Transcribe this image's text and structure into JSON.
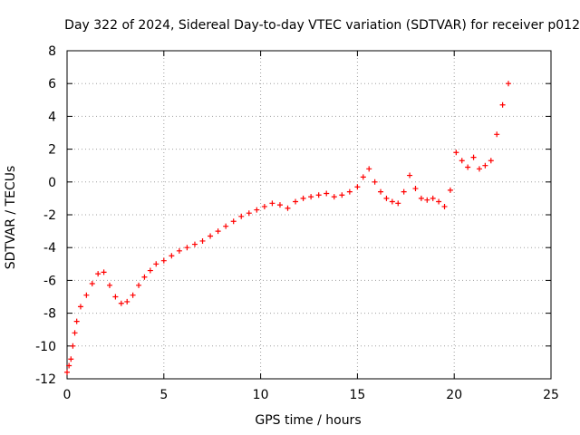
{
  "chart_data": {
    "type": "scatter",
    "title": "Day 322 of 2024, Sidereal Day-to-day VTEC variation (SDTVAR) for receiver p012",
    "xlabel": "GPS time / hours",
    "ylabel": "SDTVAR / TECUs",
    "xlim": [
      0,
      25
    ],
    "ylim": [
      -12,
      8
    ],
    "xticks": [
      "0",
      "5",
      "10",
      "15",
      "20",
      "25"
    ],
    "yticks": [
      "-12",
      "-10",
      "-8",
      "-6",
      "-4",
      "-2",
      "0",
      "2",
      "4",
      "6",
      "8"
    ],
    "grid": true,
    "marker": "+",
    "color": "#ff0000",
    "series": [
      {
        "name": "SDTVAR",
        "x": [
          0.0,
          0.1,
          0.2,
          0.3,
          0.4,
          0.5,
          0.7,
          1.0,
          1.3,
          1.6,
          1.9,
          2.2,
          2.5,
          2.8,
          3.1,
          3.4,
          3.7,
          4.0,
          4.3,
          4.6,
          5.0,
          5.4,
          5.8,
          6.2,
          6.6,
          7.0,
          7.4,
          7.8,
          8.2,
          8.6,
          9.0,
          9.4,
          9.8,
          10.2,
          10.6,
          11.0,
          11.4,
          11.8,
          12.2,
          12.6,
          13.0,
          13.4,
          13.8,
          14.2,
          14.6,
          15.0,
          15.3,
          15.6,
          15.9,
          16.2,
          16.5,
          16.8,
          17.1,
          17.4,
          17.7,
          18.0,
          18.3,
          18.6,
          18.9,
          19.2,
          19.5,
          19.8,
          20.1,
          20.4,
          20.7,
          21.0,
          21.3,
          21.6,
          21.9,
          22.2,
          22.5,
          22.8
        ],
        "y": [
          -11.6,
          -11.2,
          -10.8,
          -10.0,
          -9.2,
          -8.5,
          -7.6,
          -6.9,
          -6.2,
          -5.6,
          -5.5,
          -6.3,
          -7.0,
          -7.4,
          -7.3,
          -6.9,
          -6.3,
          -5.8,
          -5.4,
          -5.0,
          -4.8,
          -4.5,
          -4.2,
          -4.0,
          -3.8,
          -3.6,
          -3.3,
          -3.0,
          -2.7,
          -2.4,
          -2.1,
          -1.9,
          -1.7,
          -1.5,
          -1.3,
          -1.4,
          -1.6,
          -1.2,
          -1.0,
          -0.9,
          -0.8,
          -0.7,
          -0.9,
          -0.8,
          -0.6,
          -0.3,
          0.3,
          0.8,
          0.0,
          -0.6,
          -1.0,
          -1.2,
          -1.3,
          -0.6,
          0.4,
          -0.4,
          -1.0,
          -1.1,
          -1.0,
          -1.2,
          -1.5,
          -0.5,
          1.8,
          1.3,
          0.9,
          1.5,
          0.8,
          1.0,
          1.3,
          2.9,
          4.7,
          6.0
        ]
      }
    ]
  }
}
